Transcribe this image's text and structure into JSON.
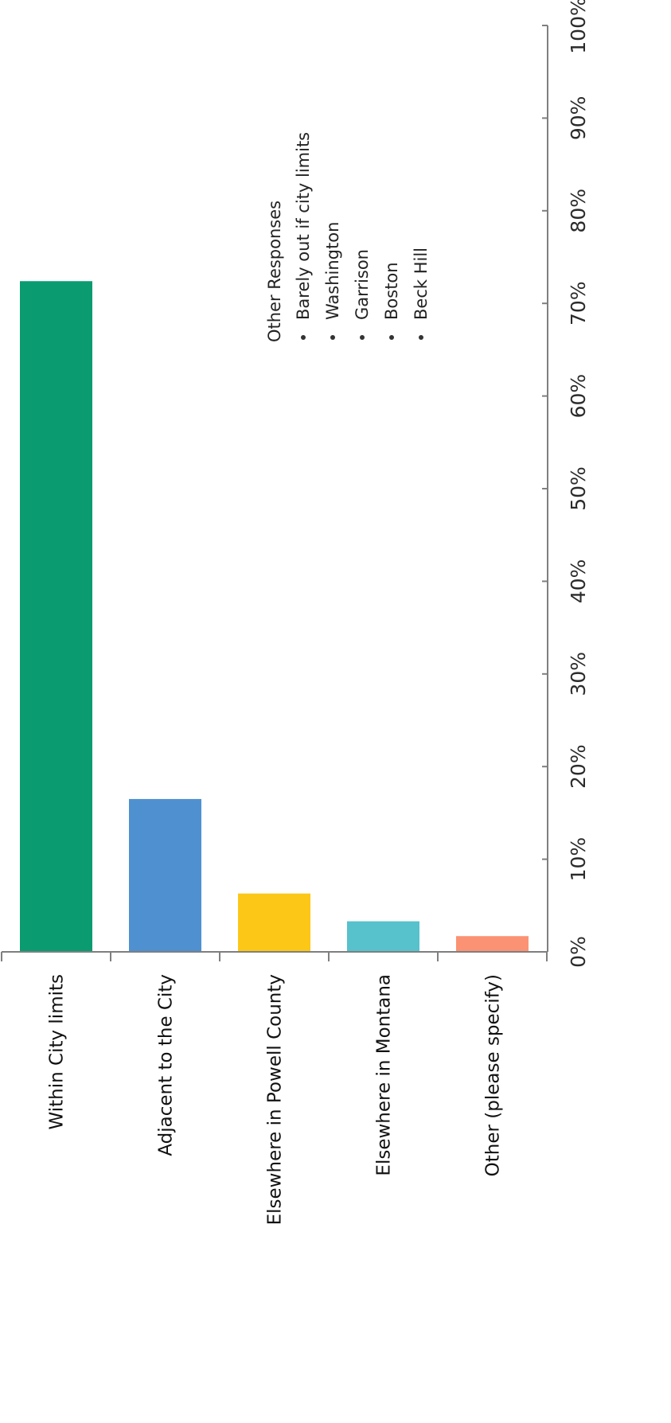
{
  "chart_data": {
    "type": "bar",
    "orientation": "vertical",
    "categories": [
      "Within City limits",
      "Adjacent to the City",
      "Elsewhere in Powell County",
      "Elsewhere in Montana",
      "Other (please specify)"
    ],
    "values": [
      72.4,
      16.5,
      6.3,
      3.3,
      1.7
    ],
    "colors": [
      "#0a9b70",
      "#4f91d0",
      "#fcc716",
      "#57c1cc",
      "#fb9274"
    ],
    "ylim": [
      0,
      100
    ],
    "yticks": [
      "0%",
      "10%",
      "20%",
      "30%",
      "40%",
      "50%",
      "60%",
      "70%",
      "80%",
      "90%",
      "100%"
    ],
    "grid": false,
    "annotation": {
      "heading": "Other Responses",
      "items": [
        "Barely out if city limits",
        "Washington",
        "Garrison",
        "Boston",
        "Beck Hill"
      ]
    }
  }
}
